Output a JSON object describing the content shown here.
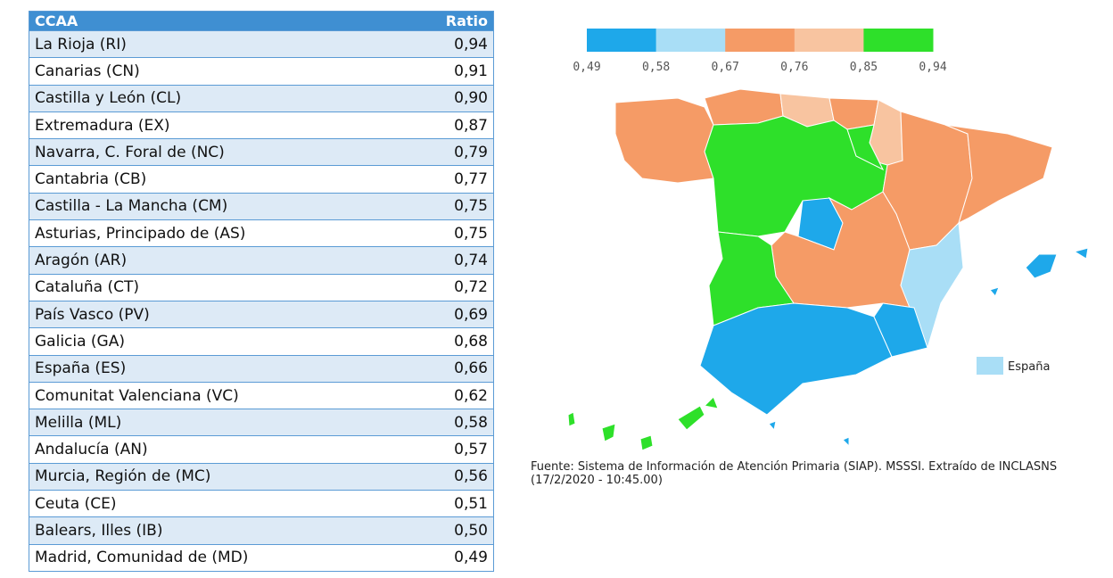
{
  "table": {
    "header": [
      "CCAA",
      "Ratio"
    ],
    "rows": [
      [
        "La Rioja (RI)",
        "0,94"
      ],
      [
        "Canarias (CN)",
        "0,91"
      ],
      [
        "Castilla y León (CL)",
        "0,90"
      ],
      [
        "Extremadura (EX)",
        "0,87"
      ],
      [
        "Navarra, C. Foral de (NC)",
        "0,79"
      ],
      [
        "Cantabria (CB)",
        "0,77"
      ],
      [
        "Castilla - La Mancha (CM)",
        "0,75"
      ],
      [
        "Asturias, Principado de (AS)",
        "0,75"
      ],
      [
        "Aragón (AR)",
        "0,74"
      ],
      [
        "Cataluña (CT)",
        "0,72"
      ],
      [
        "País Vasco (PV)",
        "0,69"
      ],
      [
        "Galicia (GA)",
        "0,68"
      ],
      [
        "España (ES)",
        "0,66"
      ],
      [
        "Comunitat Valenciana (VC)",
        "0,62"
      ],
      [
        "Melilla (ML)",
        "0,58"
      ],
      [
        "Andalucía (AN)",
        "0,57"
      ],
      [
        "Murcia, Región de (MC)",
        "0,56"
      ],
      [
        "Ceuta (CE)",
        "0,51"
      ],
      [
        "Balears, Illes (IB)",
        "0,50"
      ],
      [
        "Madrid, Comunidad de (MD)",
        "0,49"
      ]
    ]
  },
  "legend": {
    "labels": [
      "0,49",
      "0,58",
      "0,67",
      "0,76",
      "0,85",
      "0,94"
    ],
    "colors": [
      "#1ea8ea",
      "#a9def6",
      "#f59b66",
      "#f8c4a0",
      "#2ee02a"
    ],
    "key": "España"
  },
  "source": "Fuente: Sistema de Información de Atención Primaria (SIAP). MSSSI. Extraído de INCLASNS (17/2/2020 - 10:45.00)"
}
